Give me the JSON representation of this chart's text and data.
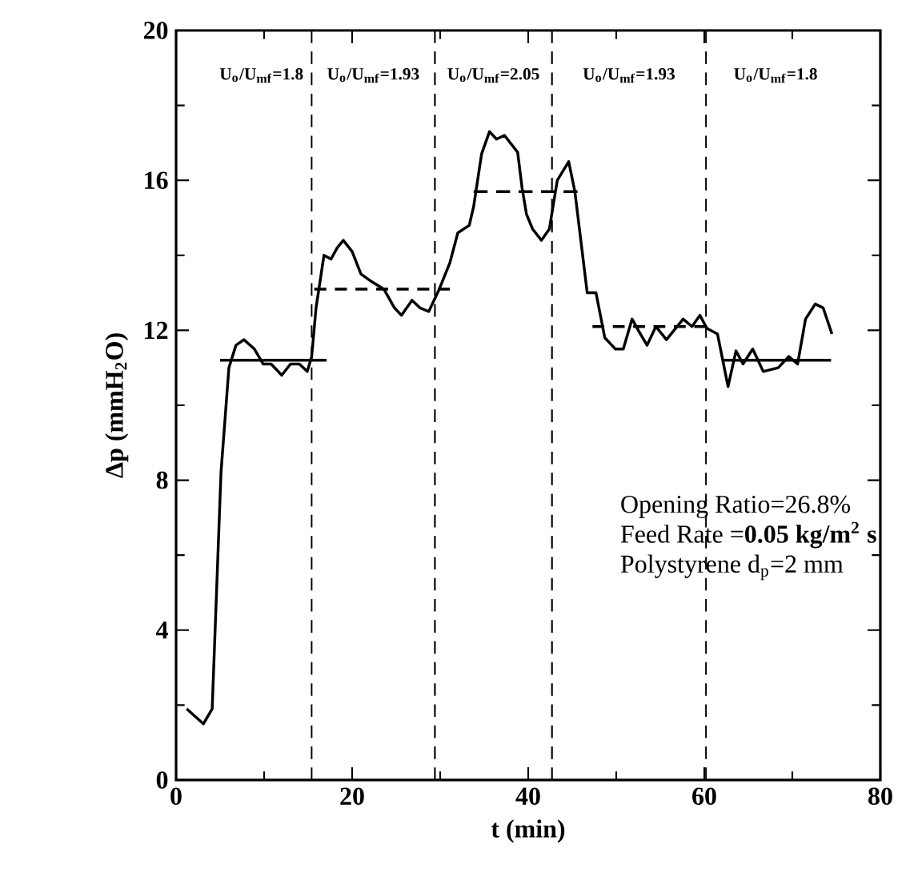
{
  "chart_data": {
    "type": "line",
    "xlabel": "t (min)",
    "ylabel": "Δp (mmH$_{2}$O)",
    "xlim": [
      0,
      80
    ],
    "xticks": [
      0,
      20,
      40,
      60,
      80
    ],
    "ylim": [
      0,
      20
    ],
    "yticks": [
      0,
      4,
      8,
      12,
      16,
      20
    ],
    "grid": false,
    "marker": "none",
    "series": [
      {
        "color": "#000000",
        "line_style": "solid",
        "x": [
          1.2,
          3.1,
          4.1,
          5.1,
          6.0,
          6.8,
          7.7,
          8.9,
          9.9,
          10.8,
          12.0,
          13.0,
          14.0,
          14.9,
          15.4,
          15.9,
          16.8,
          17.6,
          18.3,
          19.0,
          20.0,
          21.0,
          22.2,
          23.6,
          24.8,
          25.6,
          26.8,
          27.7,
          28.7,
          29.9,
          31.1,
          32.0,
          33.3,
          33.8,
          34.7,
          35.6,
          36.4,
          37.3,
          38.8,
          39.3,
          39.8,
          40.5,
          41.5,
          42.4,
          43.3,
          44.6,
          45.3,
          46.7,
          47.7,
          48.7,
          49.9,
          50.8,
          51.8,
          52.5,
          53.5,
          54.5,
          55.7,
          57.6,
          58.6,
          59.5,
          60.3,
          61.5,
          62.7,
          63.6,
          64.4,
          65.5,
          66.7,
          68.4,
          69.6,
          70.6,
          71.5,
          72.6,
          73.5,
          74.5
        ],
        "values": [
          1.9,
          1.5,
          1.9,
          8.2,
          11.0,
          11.6,
          11.75,
          11.5,
          11.1,
          11.1,
          10.8,
          11.1,
          11.1,
          10.9,
          11.3,
          12.6,
          14.0,
          13.9,
          14.2,
          14.4,
          14.1,
          13.5,
          13.3,
          13.1,
          12.6,
          12.4,
          12.8,
          12.6,
          12.5,
          13.1,
          13.8,
          14.6,
          14.8,
          15.3,
          16.7,
          17.3,
          17.1,
          17.2,
          16.75,
          15.8,
          15.1,
          14.7,
          14.4,
          14.7,
          16.0,
          16.5,
          15.7,
          13.0,
          13.0,
          11.8,
          11.5,
          11.5,
          12.3,
          12.0,
          11.6,
          12.1,
          11.75,
          12.3,
          12.1,
          12.4,
          12.05,
          11.9,
          10.5,
          11.45,
          11.1,
          11.5,
          10.9,
          11.0,
          11.3,
          11.1,
          12.3,
          12.7,
          12.6,
          11.9
        ]
      },
      {
        "color": "#000000",
        "line_style": "solid",
        "x": [
          5.0,
          17.1
        ],
        "values": [
          11.2,
          11.2
        ]
      },
      {
        "color": "#000000",
        "line_style": "dashed",
        "x": [
          15.7,
          31.1
        ],
        "values": [
          13.1,
          13.1
        ]
      },
      {
        "color": "#000000",
        "line_style": "dashed",
        "x": [
          33.8,
          45.6
        ],
        "values": [
          15.7,
          15.7
        ]
      },
      {
        "color": "#000000",
        "line_style": "dashed",
        "x": [
          47.3,
          60.2
        ],
        "values": [
          12.1,
          12.1
        ]
      },
      {
        "color": "#000000",
        "line_style": "solid",
        "x": [
          62.0,
          74.4
        ],
        "values": [
          11.2,
          11.2
        ]
      }
    ],
    "ref_lines": [
      {
        "axis": "x",
        "value": 15.4,
        "line_style": "dashed"
      },
      {
        "axis": "x",
        "value": 29.4,
        "line_style": "dashed"
      },
      {
        "axis": "x",
        "value": 42.7,
        "line_style": "dashed"
      },
      {
        "axis": "x",
        "value": 60.2,
        "line_style": "dashed"
      }
    ],
    "annotations": [
      "U$_{o}$/U$_{mf}$=1.8",
      "U$_{o}$/U$_{mf}$=1.93",
      "U$_{o}$/U$_{mf}$=2.05",
      "U$_{o}$/U$_{mf}$=1.93",
      "U$_{o}$/U$_{mf}$=1.8",
      "Opening Ratio=26.8%",
      "Feed Rate =**0.05 kg/m$^{2}$ s**",
      "Polystyrene d$_{p}$=2 mm"
    ]
  }
}
